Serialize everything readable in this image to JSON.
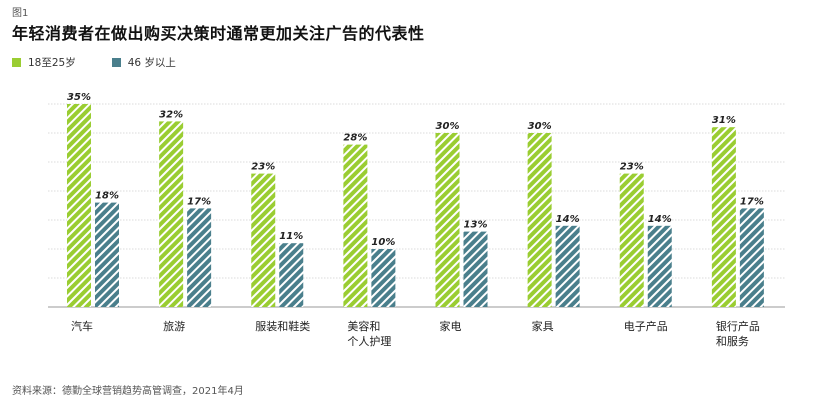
{
  "figure_label": "图1",
  "source": "资料来源：德勤全球营销趋势高管调查，2021年4月",
  "colors": {
    "green": "#9ACD32",
    "teal": "#4A7F8C",
    "grid": "#cfcfcf"
  },
  "chart_data": {
    "type": "bar",
    "title": "年轻消费者在做出购买决策时通常更加关注广告的代表性",
    "categories": [
      [
        "汽车"
      ],
      [
        "旅游"
      ],
      [
        "服装和鞋类"
      ],
      [
        "美容和",
        "个人护理"
      ],
      [
        "家电"
      ],
      [
        "家具"
      ],
      [
        "电子产品"
      ],
      [
        "银行产品",
        "和服务"
      ]
    ],
    "series": [
      {
        "name": "18至25岁",
        "values": [
          35,
          32,
          23,
          28,
          30,
          30,
          23,
          31
        ]
      },
      {
        "name": "46 岁以上",
        "values": [
          18,
          17,
          11,
          10,
          13,
          14,
          14,
          17
        ]
      }
    ],
    "value_suffix": "%",
    "ylim": [
      0,
      35
    ],
    "grid": true,
    "legend_position": "top-left"
  }
}
